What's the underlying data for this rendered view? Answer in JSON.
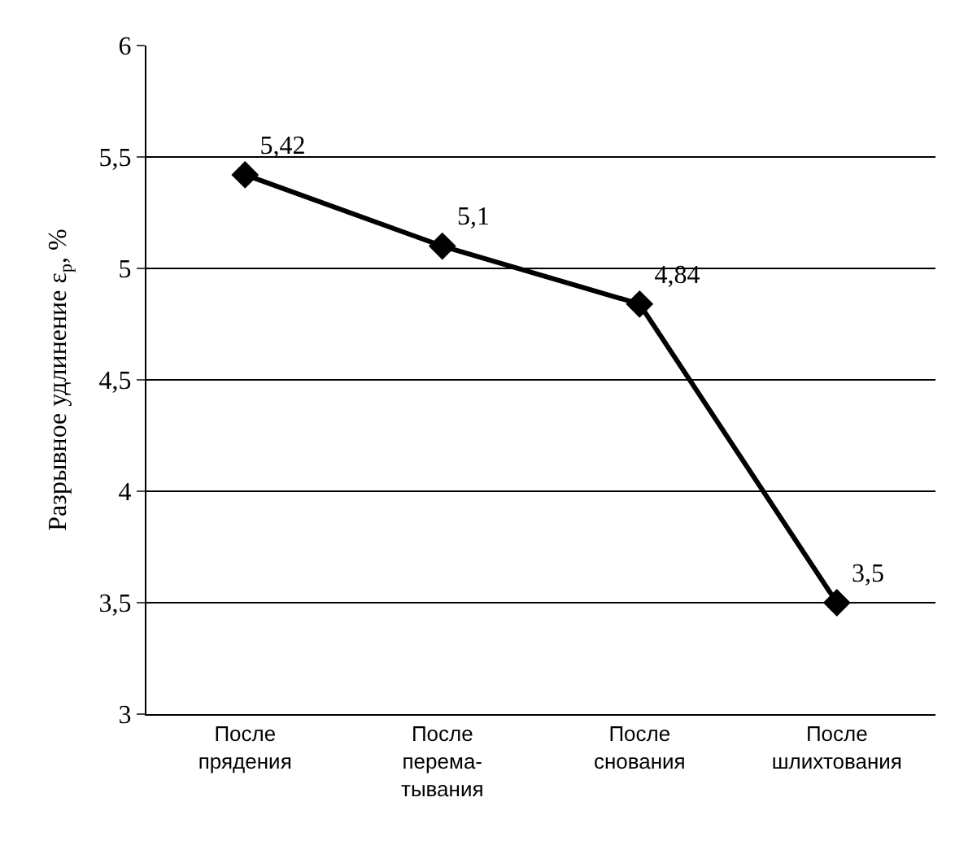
{
  "chart_data": {
    "type": "line",
    "categories": [
      "После прядения",
      "После перема-тывания",
      "После снования",
      "После шлихтования"
    ],
    "series": [
      {
        "color": "#000000",
        "values": [
          5.42,
          5.1,
          4.84,
          3.5
        ],
        "value_labels": [
          "5,42",
          "5,1",
          "4,84",
          "3,5"
        ]
      }
    ],
    "ylabel": "Разрывное удлинение ε$_{р}$, %",
    "ylim": [
      3,
      6
    ],
    "yticks": [
      3,
      {
        "value": 3.5,
        "label": "3,5"
      },
      4,
      {
        "value": 4.5,
        "label": "4,5"
      },
      5,
      {
        "value": 5.5,
        "label": "5,5"
      },
      6
    ],
    "grid": "y",
    "marker": "diamond",
    "line_style": "solid"
  }
}
